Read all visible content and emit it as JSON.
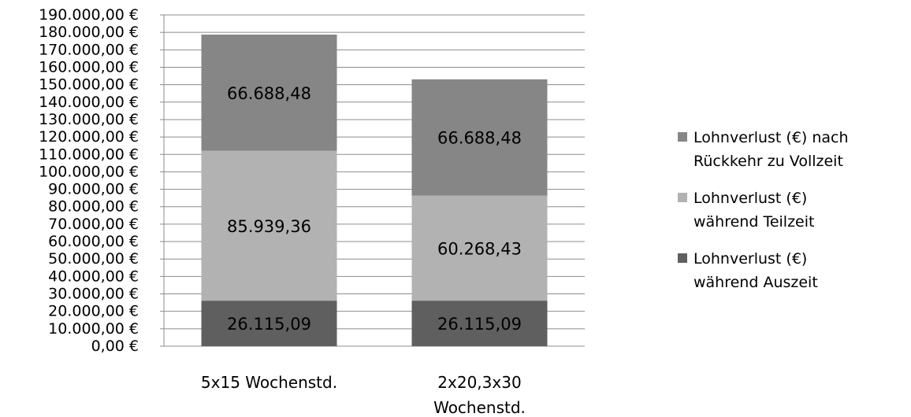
{
  "chart_data": {
    "type": "bar",
    "stacked": true,
    "categories": [
      "5x15 Wochenstd.",
      "2x20,3x30 Wochenstd."
    ],
    "category_lines": [
      [
        "5x15 Wochenstd."
      ],
      [
        "2x20,3x30",
        "Wochenstd."
      ]
    ],
    "ylim": [
      0,
      190000
    ],
    "ytick_step": 10000,
    "ytick_labels": [
      "0,00 €",
      "10.000,00 €",
      "20.000,00 €",
      "30.000,00 €",
      "40.000,00 €",
      "50.000,00 €",
      "60.000,00 €",
      "70.000,00 €",
      "80.000,00 €",
      "90.000,00 €",
      "100.000,00 €",
      "110.000,00 €",
      "120.000,00 €",
      "130.000,00 €",
      "140.000,00 €",
      "150.000,00 €",
      "160.000,00 €",
      "170.000,00 €",
      "180.000,00 €",
      "190.000,00 €"
    ],
    "grid": true,
    "legend_position": "right",
    "series": [
      {
        "name": "Lohnverlust (€) während Auszeit",
        "legend_lines": [
          "Lohnverlust (€)",
          "während Auszeit"
        ],
        "color": "#5f5f5f",
        "values": [
          26115.09,
          26115.09
        ],
        "labels": [
          "26.115,09",
          "26.115,09"
        ]
      },
      {
        "name": "Lohnverlust (€) während Teilzeit",
        "legend_lines": [
          "Lohnverlust (€)",
          "während Teilzeit"
        ],
        "color": "#b2b2b2",
        "values": [
          85939.36,
          60268.43
        ],
        "labels": [
          "85.939,36",
          "60.268,43"
        ]
      },
      {
        "name": "Lohnverlust (€) nach Rückkehr zu Vollzeit",
        "legend_lines": [
          "Lohnverlust (€) nach",
          "Rückkehr zu Vollzeit"
        ],
        "color": "#868686",
        "values": [
          66688.48,
          66688.48
        ],
        "labels": [
          "66.688,48",
          "66.688,48"
        ]
      }
    ]
  }
}
